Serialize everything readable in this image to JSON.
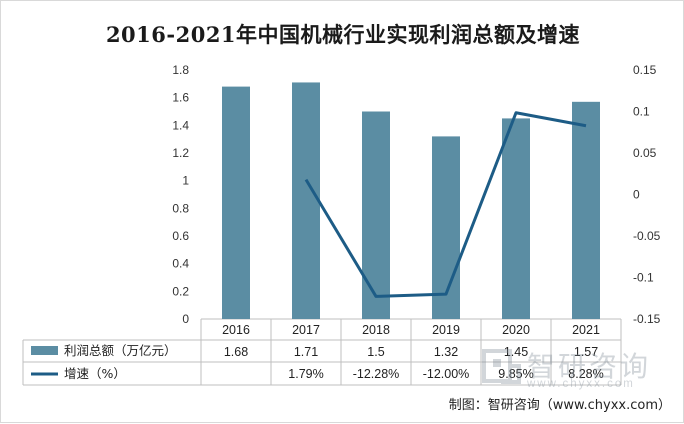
{
  "chart_data": {
    "type": "bar",
    "title": "2016-2021年中国机械行业实现利润总额及增速",
    "categories": [
      "2016",
      "2017",
      "2018",
      "2019",
      "2020",
      "2021"
    ],
    "series": [
      {
        "name": "利润总额（万亿元）",
        "kind": "bar",
        "axis": "left",
        "values": [
          1.68,
          1.71,
          1.5,
          1.32,
          1.45,
          1.57
        ],
        "labels": [
          "1.68",
          "1.71",
          "1.5",
          "1.32",
          "1.45",
          "1.57"
        ],
        "color": "#5b8da3"
      },
      {
        "name": "增速（%）",
        "kind": "line",
        "axis": "right",
        "values": [
          null,
          0.0179,
          -0.1228,
          -0.12,
          0.0985,
          0.0828
        ],
        "labels": [
          "",
          "1.79%",
          "-12.28%",
          "-12.00%",
          "9.85%",
          "8.28%"
        ],
        "color": "#1d5c86"
      }
    ],
    "left_axis": {
      "ylim": [
        0,
        1.8
      ],
      "ticks": [
        "0",
        "0.2",
        "0.4",
        "0.6",
        "0.8",
        "1",
        "1.2",
        "1.4",
        "1.6",
        "1.8"
      ]
    },
    "right_axis": {
      "ylim": [
        -0.15,
        0.15
      ],
      "ticks": [
        "-0.15",
        "-0.1",
        "-0.05",
        "0",
        "0.05",
        "0.1",
        "0.15"
      ]
    },
    "grid": false,
    "legend": "data-table"
  },
  "source_note": "制图：智研咨询（www.chyxx.com）",
  "watermark": {
    "name": "智研咨询",
    "url": "www.chyxx.com"
  },
  "colors": {
    "bar": "#5b8da3",
    "line": "#1d5c86",
    "table_border": "#bfbfbf"
  }
}
